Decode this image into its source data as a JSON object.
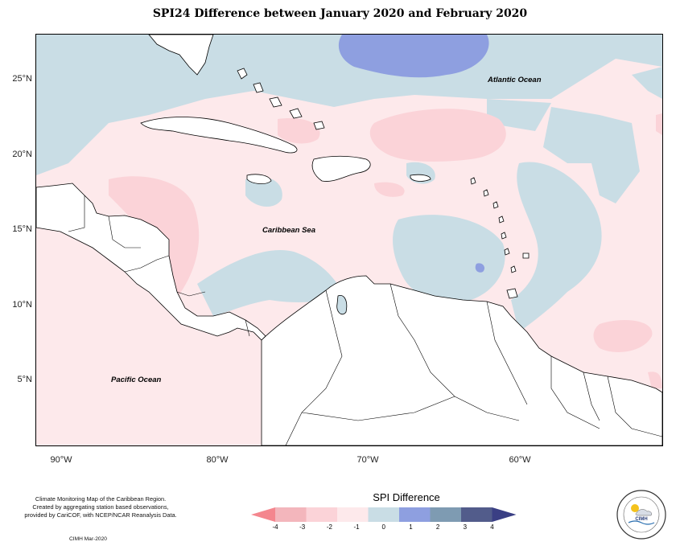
{
  "title": "SPI24 Difference between January 2020 and February 2020",
  "map": {
    "lat_ticks": [
      "25°N",
      "20°N",
      "15°N",
      "10°N",
      "5°N"
    ],
    "lon_ticks": [
      "90°W",
      "80°W",
      "70°W",
      "60°W"
    ],
    "labels": {
      "atlantic": "Atlantic Ocean",
      "caribbean": "Caribbean Sea",
      "pacific": "Pacific Ocean"
    }
  },
  "legend": {
    "title": "SPI Difference",
    "ticks": [
      "-4",
      "-3",
      "-2",
      "-1",
      "0",
      "1",
      "2",
      "3",
      "4"
    ],
    "colors": [
      "#f4868e",
      "#f3b6bc",
      "#fbd3d8",
      "#fde9eb",
      "#c9dde5",
      "#8e9fe0",
      "#7e9bb2",
      "#525c8b",
      "#3a3f84"
    ]
  },
  "credits": {
    "line1": "Climate Monitoring Map of the Caribbean Region.",
    "line2": "Created by aggregating station based observations,",
    "line3": "provided by CariCOF, with NCEP/NCAR Reanalysis Data.",
    "date": "CIMH Mar-2020"
  },
  "logo": {
    "text": "CIMH"
  }
}
